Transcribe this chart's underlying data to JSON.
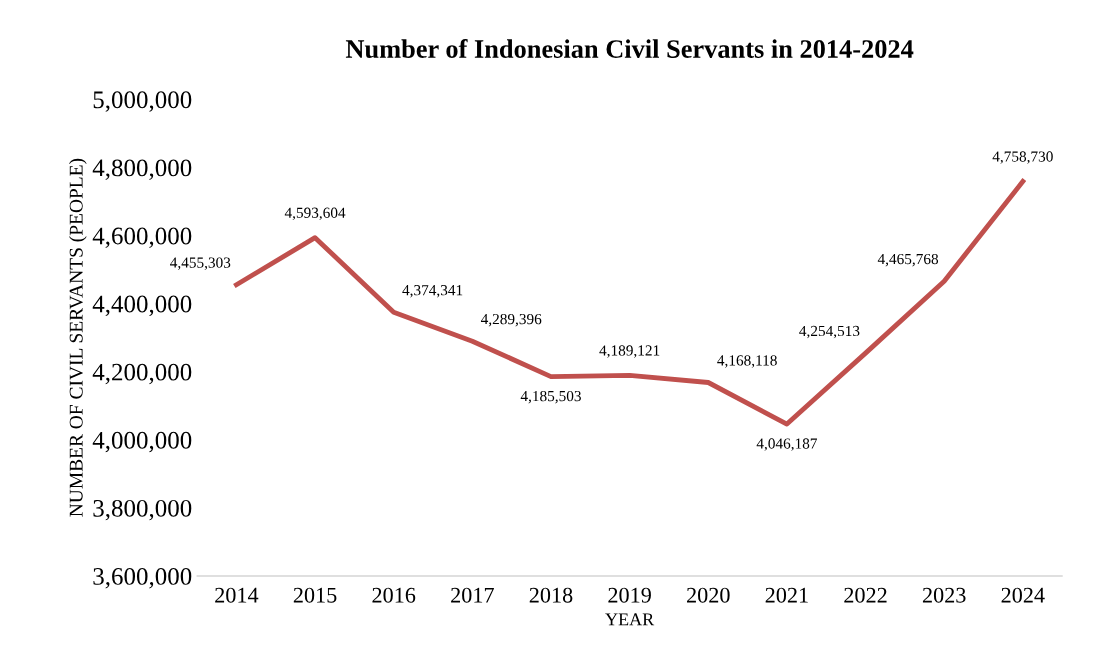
{
  "chart_data": {
    "type": "line",
    "title": "Number of Indonesian Civil Servants in 2014-2024",
    "xlabel": "YEAR",
    "ylabel": "NUMBER OF CIVIL SERVANTS (PEOPLE)",
    "categories": [
      "2014",
      "2015",
      "2016",
      "2017",
      "2018",
      "2019",
      "2020",
      "2021",
      "2022",
      "2023",
      "2024"
    ],
    "series": [
      {
        "color": "#c0504d",
        "values": [
          4455303,
          4593604,
          4374341,
          4289396,
          4185503,
          4189121,
          4168118,
          4046187,
          4254513,
          4465768,
          4758730
        ],
        "value_labels": [
          "4,455,303",
          "4,593,604",
          "4,374,341",
          "4,289,396",
          "4,185,503",
          "4,189,121",
          "4,168,118",
          "4,046,187",
          "4,254,513",
          "4,465,768",
          "4,758,730"
        ]
      }
    ],
    "ylim": [
      3600000,
      5000000
    ],
    "yticks": [
      {
        "value": 3600000,
        "label": "3,600,000"
      },
      {
        "value": 3800000,
        "label": "3,800,000"
      },
      {
        "value": 4000000,
        "label": "4,000,000"
      },
      {
        "value": 4200000,
        "label": "4,200,000"
      },
      {
        "value": 4400000,
        "label": "4,400,000"
      },
      {
        "value": 4600000,
        "label": "4,600,000"
      },
      {
        "value": 4800000,
        "label": "4,800,000"
      },
      {
        "value": 5000000,
        "label": "5,000,000"
      }
    ],
    "marker": "none",
    "line_style": "solid",
    "grid": false
  }
}
